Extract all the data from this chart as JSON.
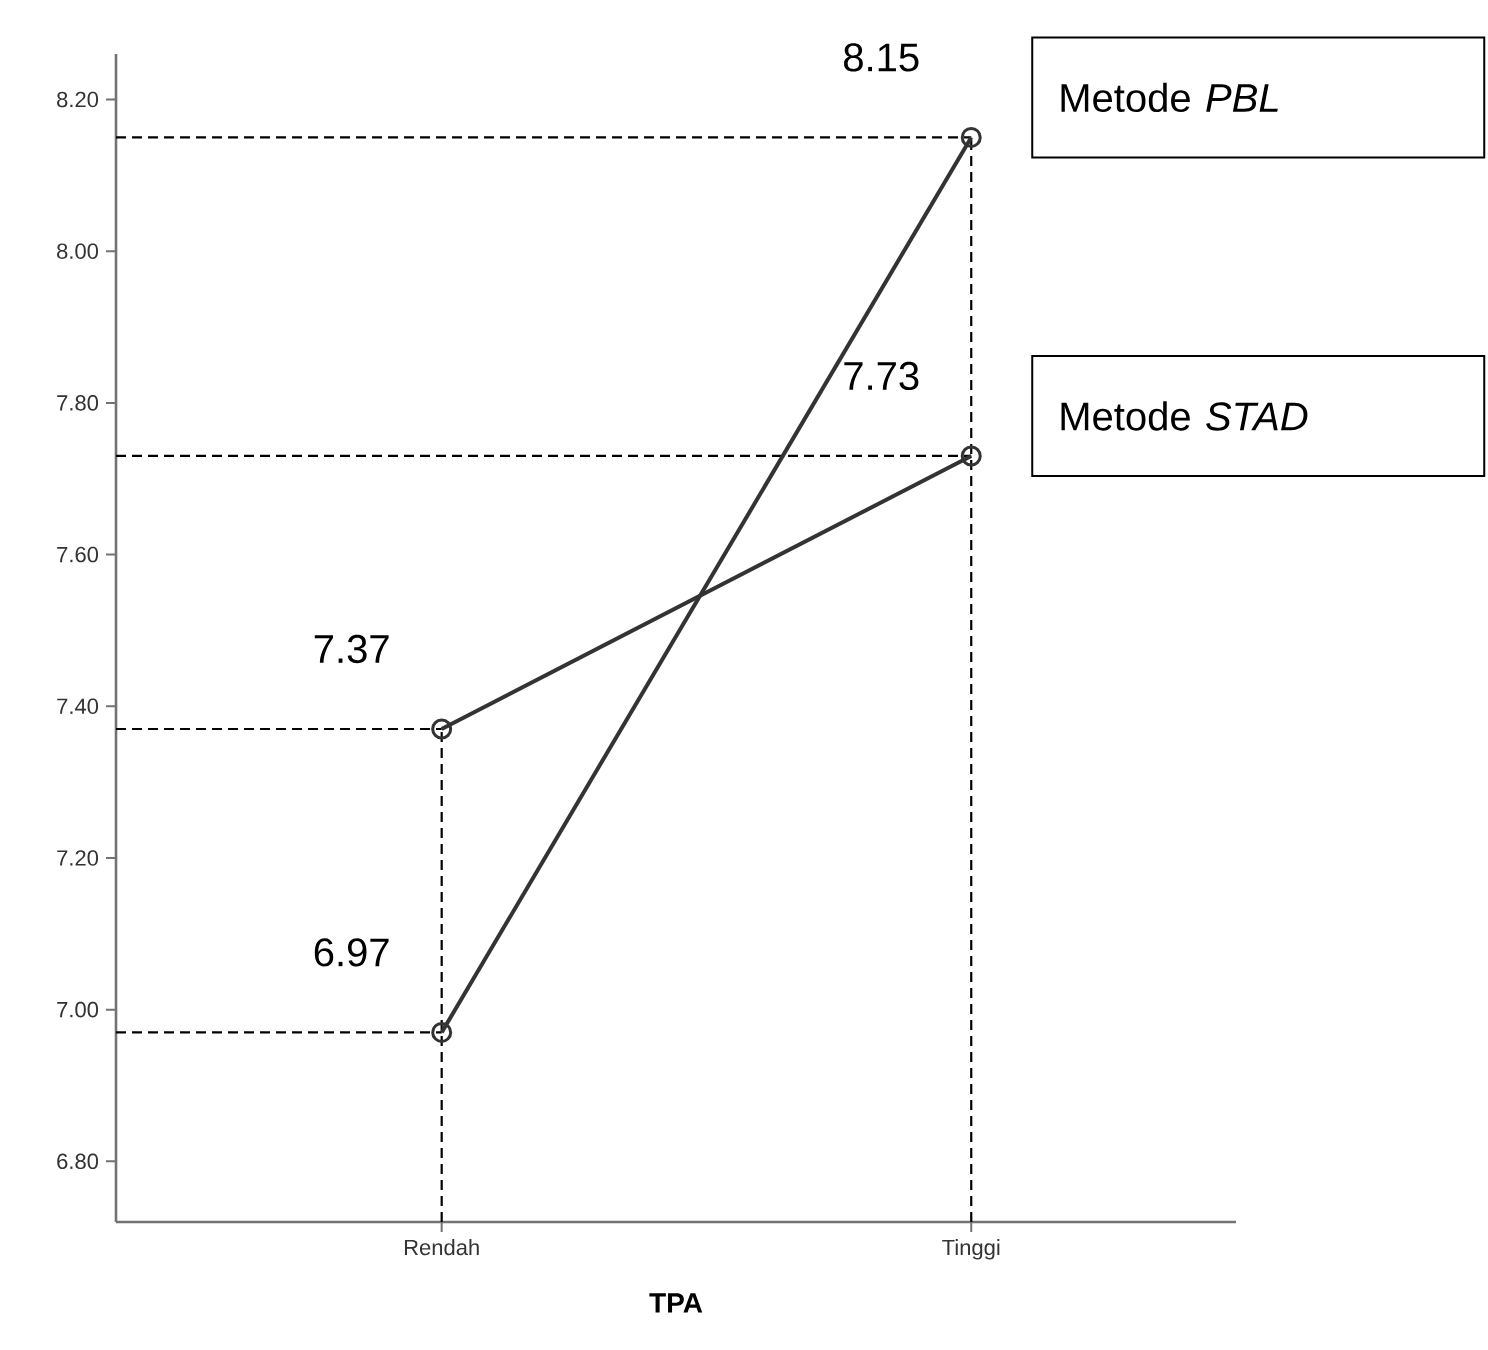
{
  "chart_data": {
    "type": "line",
    "xlabel": "TPA",
    "categories": [
      "Rendah",
      "Tinggi"
    ],
    "series": [
      {
        "name": "Metode *PBL*",
        "color": "#333333",
        "values": [
          6.97,
          8.15
        ]
      },
      {
        "name": "Metode *STAD*",
        "color": "#333333",
        "values": [
          7.37,
          7.73
        ]
      }
    ],
    "ylim": [
      6.72,
      8.26
    ],
    "yticks": [
      {
        "value": 6.8,
        "label": "6.80"
      },
      {
        "value": 7.0,
        "label": "7.00"
      },
      {
        "value": 7.2,
        "label": "7.20"
      },
      {
        "value": 7.4,
        "label": "7.40"
      },
      {
        "value": 7.6,
        "label": "7.60"
      },
      {
        "value": 7.8,
        "label": "7.80"
      },
      {
        "value": 8.0,
        "label": "8.00"
      },
      {
        "value": 8.2,
        "label": "8.20"
      }
    ],
    "ref_lines": [
      {
        "axis": "y",
        "value": 8.15,
        "line_style": "dashed"
      },
      {
        "axis": "y",
        "value": 7.73,
        "line_style": "dashed"
      },
      {
        "axis": "y",
        "value": 7.37,
        "line_style": "dashed"
      },
      {
        "axis": "y",
        "value": 6.97,
        "line_style": "dashed"
      },
      {
        "axis": "x",
        "value": "Rendah",
        "line_style": "dashed"
      },
      {
        "axis": "x",
        "value": "Tinggi",
        "line_style": "dashed"
      }
    ],
    "data_labels": true,
    "marker": "circle",
    "line_style": "solid",
    "grid": false
  }
}
